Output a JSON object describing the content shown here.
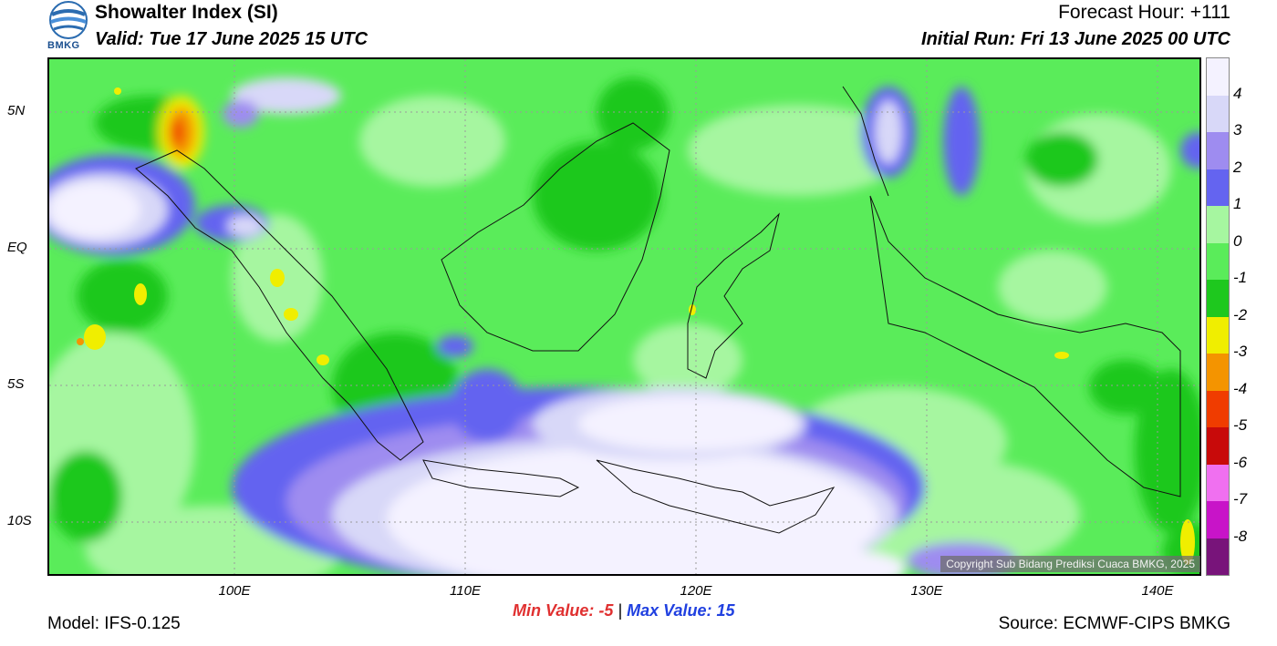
{
  "header": {
    "title": "Showalter Index (SI)",
    "valid": "Valid: Tue 17 June 2025 15 UTC",
    "forecast_hour": "Forecast Hour: +111",
    "initial_run": "Initial Run: Fri 13 June 2025 00 UTC"
  },
  "logo": {
    "text": "BMKG"
  },
  "map": {
    "lat_labels": [
      "5N",
      "EQ",
      "5S",
      "10S"
    ],
    "lon_labels": [
      "100E",
      "110E",
      "120E",
      "130E",
      "140E"
    ],
    "copyright": "Copyright Sub Bidang Prediksi Cuaca BMKG, 2025"
  },
  "colorbar": {
    "labels": [
      "4",
      "3",
      "2",
      "1",
      "0",
      "-1",
      "-2",
      "-3",
      "-4",
      "-5",
      "-6",
      "-7",
      "-8"
    ],
    "colors": [
      "#f4f2ff",
      "#d8d8f8",
      "#9e8cf0",
      "#6464f0",
      "#a6f6a0",
      "#5aec5a",
      "#1ec81e",
      "#f0ee00",
      "#f49400",
      "#f03c00",
      "#c80a0a",
      "#f070f0",
      "#c814c8",
      "#78147a"
    ]
  },
  "stats": {
    "min_label": "Min Value:",
    "min_value": "-5",
    "separator": "|",
    "max_label": "Max Value:",
    "max_value": "15"
  },
  "footer": {
    "model": "Model: IFS-0.125",
    "source": "Source: ECMWF-CIPS BMKG"
  }
}
